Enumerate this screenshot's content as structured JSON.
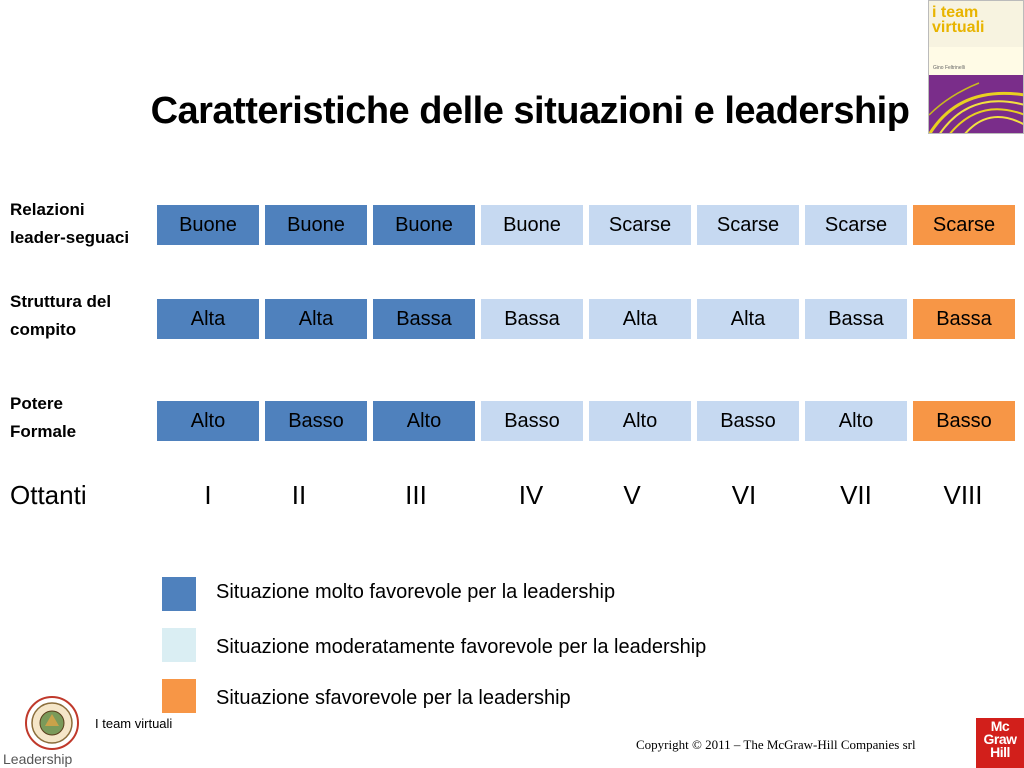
{
  "title": "Caratteristiche delle situazioni e leadership",
  "book_cover": {
    "title": "i team\nvirtuali",
    "author": "Gino Feltrinelli"
  },
  "rows": [
    {
      "label": "Relazioni\nleader-seguaci",
      "cells": [
        "Buone",
        "Buone",
        "Buone",
        "Buone",
        "Scarse",
        "Scarse",
        "Scarse",
        "Scarse"
      ]
    },
    {
      "label": "Struttura del\ncompito",
      "cells": [
        "Alta",
        "Alta",
        "Bassa",
        "Bassa",
        "Alta",
        "Alta",
        "Bassa",
        "Bassa"
      ]
    },
    {
      "label": "Potere\nFormale",
      "cells": [
        "Alto",
        "Basso",
        "Alto",
        "Basso",
        "Alto",
        "Basso",
        "Alto",
        "Basso"
      ]
    }
  ],
  "octants_label": "Ottanti",
  "octants": [
    "I",
    "II",
    "III",
    "IV",
    "V",
    "VI",
    "VII",
    "VIII"
  ],
  "cell_categories": [
    "molto",
    "molto",
    "molto",
    "moderata",
    "moderata",
    "moderata",
    "moderata",
    "sfav"
  ],
  "legend": [
    {
      "text": "Situazione molto favorevole per la leadership",
      "color": "#4f81bd"
    },
    {
      "text": "Situazione moderatamente favorevole per la leadership",
      "color": "#daeef3"
    },
    {
      "text": "Situazione sfavorevole per la leadership",
      "color": "#f79646"
    }
  ],
  "footer": {
    "course": "I team virtuali",
    "section": "Leadership",
    "copyright": "Copyright © 2011 – The McGraw-Hill Companies srl",
    "publisher_logo": "Mc\nGraw\nHill"
  }
}
